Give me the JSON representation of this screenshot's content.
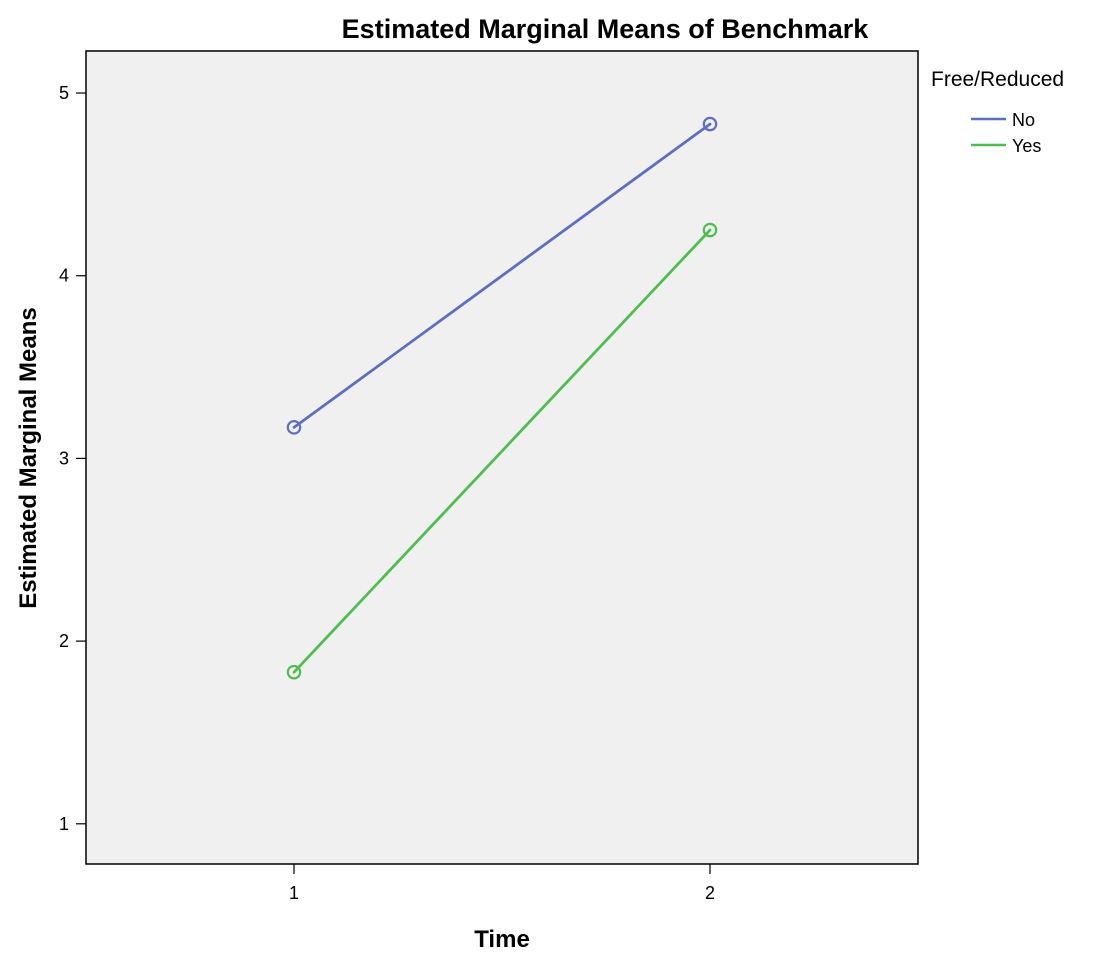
{
  "chart_data": {
    "type": "line",
    "title": "Estimated Marginal Means of Benchmark",
    "xlabel": "Time",
    "ylabel": "Estimated Marginal Means",
    "categories": [
      "1",
      "2"
    ],
    "x_range": [
      0.5,
      2.5
    ],
    "ylim": [
      0.78,
      5.23
    ],
    "y_ticks": [
      1,
      2,
      3,
      4,
      5
    ],
    "grid": false,
    "legend": {
      "title": "Free/Reduced",
      "position": "top-right outside"
    },
    "series": [
      {
        "name": "No",
        "color": "#5e6fbf",
        "values": [
          3.17,
          4.83
        ]
      },
      {
        "name": "Yes",
        "color": "#4fbe4f",
        "values": [
          1.83,
          4.25
        ]
      }
    ],
    "plot_background": "#f0f0f0"
  }
}
